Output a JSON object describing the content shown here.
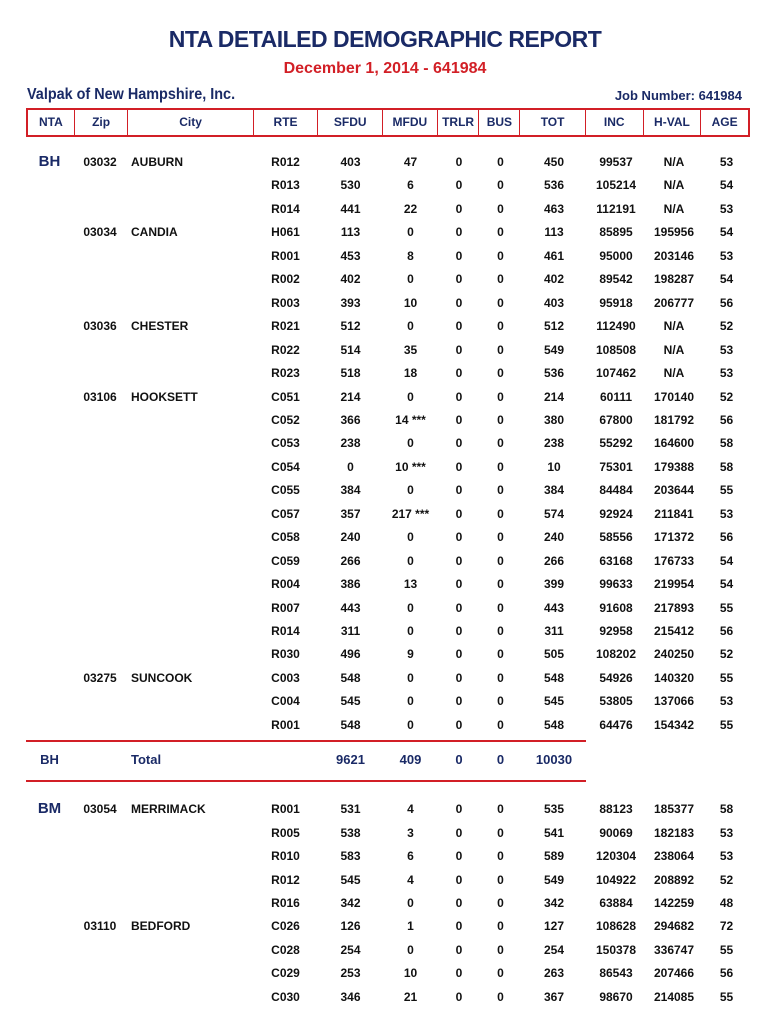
{
  "report": {
    "title": "NTA DETAILED DEMOGRAPHIC REPORT",
    "subtitle": "December 1, 2014 - 641984",
    "company": "Valpak of New Hampshire, Inc.",
    "job_number": "Job Number: 641984"
  },
  "columns": [
    "NTA",
    "Zip",
    "City",
    "RTE",
    "SFDU",
    "MFDU",
    "TRLR",
    "BUS",
    "TOT",
    "INC",
    "H-VAL",
    "AGE"
  ],
  "colors": {
    "navy": "#1a2a66",
    "red": "#d21f26"
  },
  "groups": [
    {
      "nta": "BH",
      "zips": [
        {
          "zip": "03032",
          "city": "AUBURN",
          "routes": [
            [
              "R012",
              "403",
              "47",
              "0",
              "0",
              "450",
              "99537",
              "N/A",
              "53"
            ],
            [
              "R013",
              "530",
              "6",
              "0",
              "0",
              "536",
              "105214",
              "N/A",
              "54"
            ],
            [
              "R014",
              "441",
              "22",
              "0",
              "0",
              "463",
              "112191",
              "N/A",
              "53"
            ]
          ]
        },
        {
          "zip": "03034",
          "city": "CANDIA",
          "routes": [
            [
              "H061",
              "113",
              "0",
              "0",
              "0",
              "113",
              "85895",
              "195956",
              "54"
            ],
            [
              "R001",
              "453",
              "8",
              "0",
              "0",
              "461",
              "95000",
              "203146",
              "53"
            ],
            [
              "R002",
              "402",
              "0",
              "0",
              "0",
              "402",
              "89542",
              "198287",
              "54"
            ],
            [
              "R003",
              "393",
              "10",
              "0",
              "0",
              "403",
              "95918",
              "206777",
              "56"
            ]
          ]
        },
        {
          "zip": "03036",
          "city": "CHESTER",
          "routes": [
            [
              "R021",
              "512",
              "0",
              "0",
              "0",
              "512",
              "112490",
              "N/A",
              "52"
            ],
            [
              "R022",
              "514",
              "35",
              "0",
              "0",
              "549",
              "108508",
              "N/A",
              "53"
            ],
            [
              "R023",
              "518",
              "18",
              "0",
              "0",
              "536",
              "107462",
              "N/A",
              "53"
            ]
          ]
        },
        {
          "zip": "03106",
          "city": "HOOKSETT",
          "routes": [
            [
              "C051",
              "214",
              "0",
              "0",
              "0",
              "214",
              "60111",
              "170140",
              "52"
            ],
            [
              "C052",
              "366",
              "14 ***",
              "0",
              "0",
              "380",
              "67800",
              "181792",
              "56"
            ],
            [
              "C053",
              "238",
              "0",
              "0",
              "0",
              "238",
              "55292",
              "164600",
              "58"
            ],
            [
              "C054",
              "0",
              "10 ***",
              "0",
              "0",
              "10",
              "75301",
              "179388",
              "58"
            ],
            [
              "C055",
              "384",
              "0",
              "0",
              "0",
              "384",
              "84484",
              "203644",
              "55"
            ],
            [
              "C057",
              "357",
              "217 ***",
              "0",
              "0",
              "574",
              "92924",
              "211841",
              "53"
            ],
            [
              "C058",
              "240",
              "0",
              "0",
              "0",
              "240",
              "58556",
              "171372",
              "56"
            ],
            [
              "C059",
              "266",
              "0",
              "0",
              "0",
              "266",
              "63168",
              "176733",
              "54"
            ],
            [
              "R004",
              "386",
              "13",
              "0",
              "0",
              "399",
              "99633",
              "219954",
              "54"
            ],
            [
              "R007",
              "443",
              "0",
              "0",
              "0",
              "443",
              "91608",
              "217893",
              "55"
            ],
            [
              "R014",
              "311",
              "0",
              "0",
              "0",
              "311",
              "92958",
              "215412",
              "56"
            ],
            [
              "R030",
              "496",
              "9",
              "0",
              "0",
              "505",
              "108202",
              "240250",
              "52"
            ]
          ]
        },
        {
          "zip": "03275",
          "city": "SUNCOOK",
          "routes": [
            [
              "C003",
              "548",
              "0",
              "0",
              "0",
              "548",
              "54926",
              "140320",
              "55"
            ],
            [
              "C004",
              "545",
              "0",
              "0",
              "0",
              "545",
              "53805",
              "137066",
              "53"
            ],
            [
              "R001",
              "548",
              "0",
              "0",
              "0",
              "548",
              "64476",
              "154342",
              "55"
            ]
          ]
        }
      ],
      "total": {
        "label": "Total",
        "sfdu": "9621",
        "mfdu": "409",
        "trlr": "0",
        "bus": "0",
        "tot": "10030"
      }
    },
    {
      "nta": "BM",
      "zips": [
        {
          "zip": "03054",
          "city": "MERRIMACK",
          "routes": [
            [
              "R001",
              "531",
              "4",
              "0",
              "0",
              "535",
              "88123",
              "185377",
              "58"
            ],
            [
              "R005",
              "538",
              "3",
              "0",
              "0",
              "541",
              "90069",
              "182183",
              "53"
            ],
            [
              "R010",
              "583",
              "6",
              "0",
              "0",
              "589",
              "120304",
              "238064",
              "53"
            ],
            [
              "R012",
              "545",
              "4",
              "0",
              "0",
              "549",
              "104922",
              "208892",
              "52"
            ],
            [
              "R016",
              "342",
              "0",
              "0",
              "0",
              "342",
              "63884",
              "142259",
              "48"
            ]
          ]
        },
        {
          "zip": "03110",
          "city": "BEDFORD",
          "routes": [
            [
              "C026",
              "126",
              "1",
              "0",
              "0",
              "127",
              "108628",
              "294682",
              "72"
            ],
            [
              "C028",
              "254",
              "0",
              "0",
              "0",
              "254",
              "150378",
              "336747",
              "55"
            ],
            [
              "C029",
              "253",
              "10",
              "0",
              "0",
              "263",
              "86543",
              "207466",
              "56"
            ],
            [
              "C030",
              "346",
              "21",
              "0",
              "0",
              "367",
              "98670",
              "214085",
              "55"
            ]
          ]
        }
      ]
    }
  ]
}
